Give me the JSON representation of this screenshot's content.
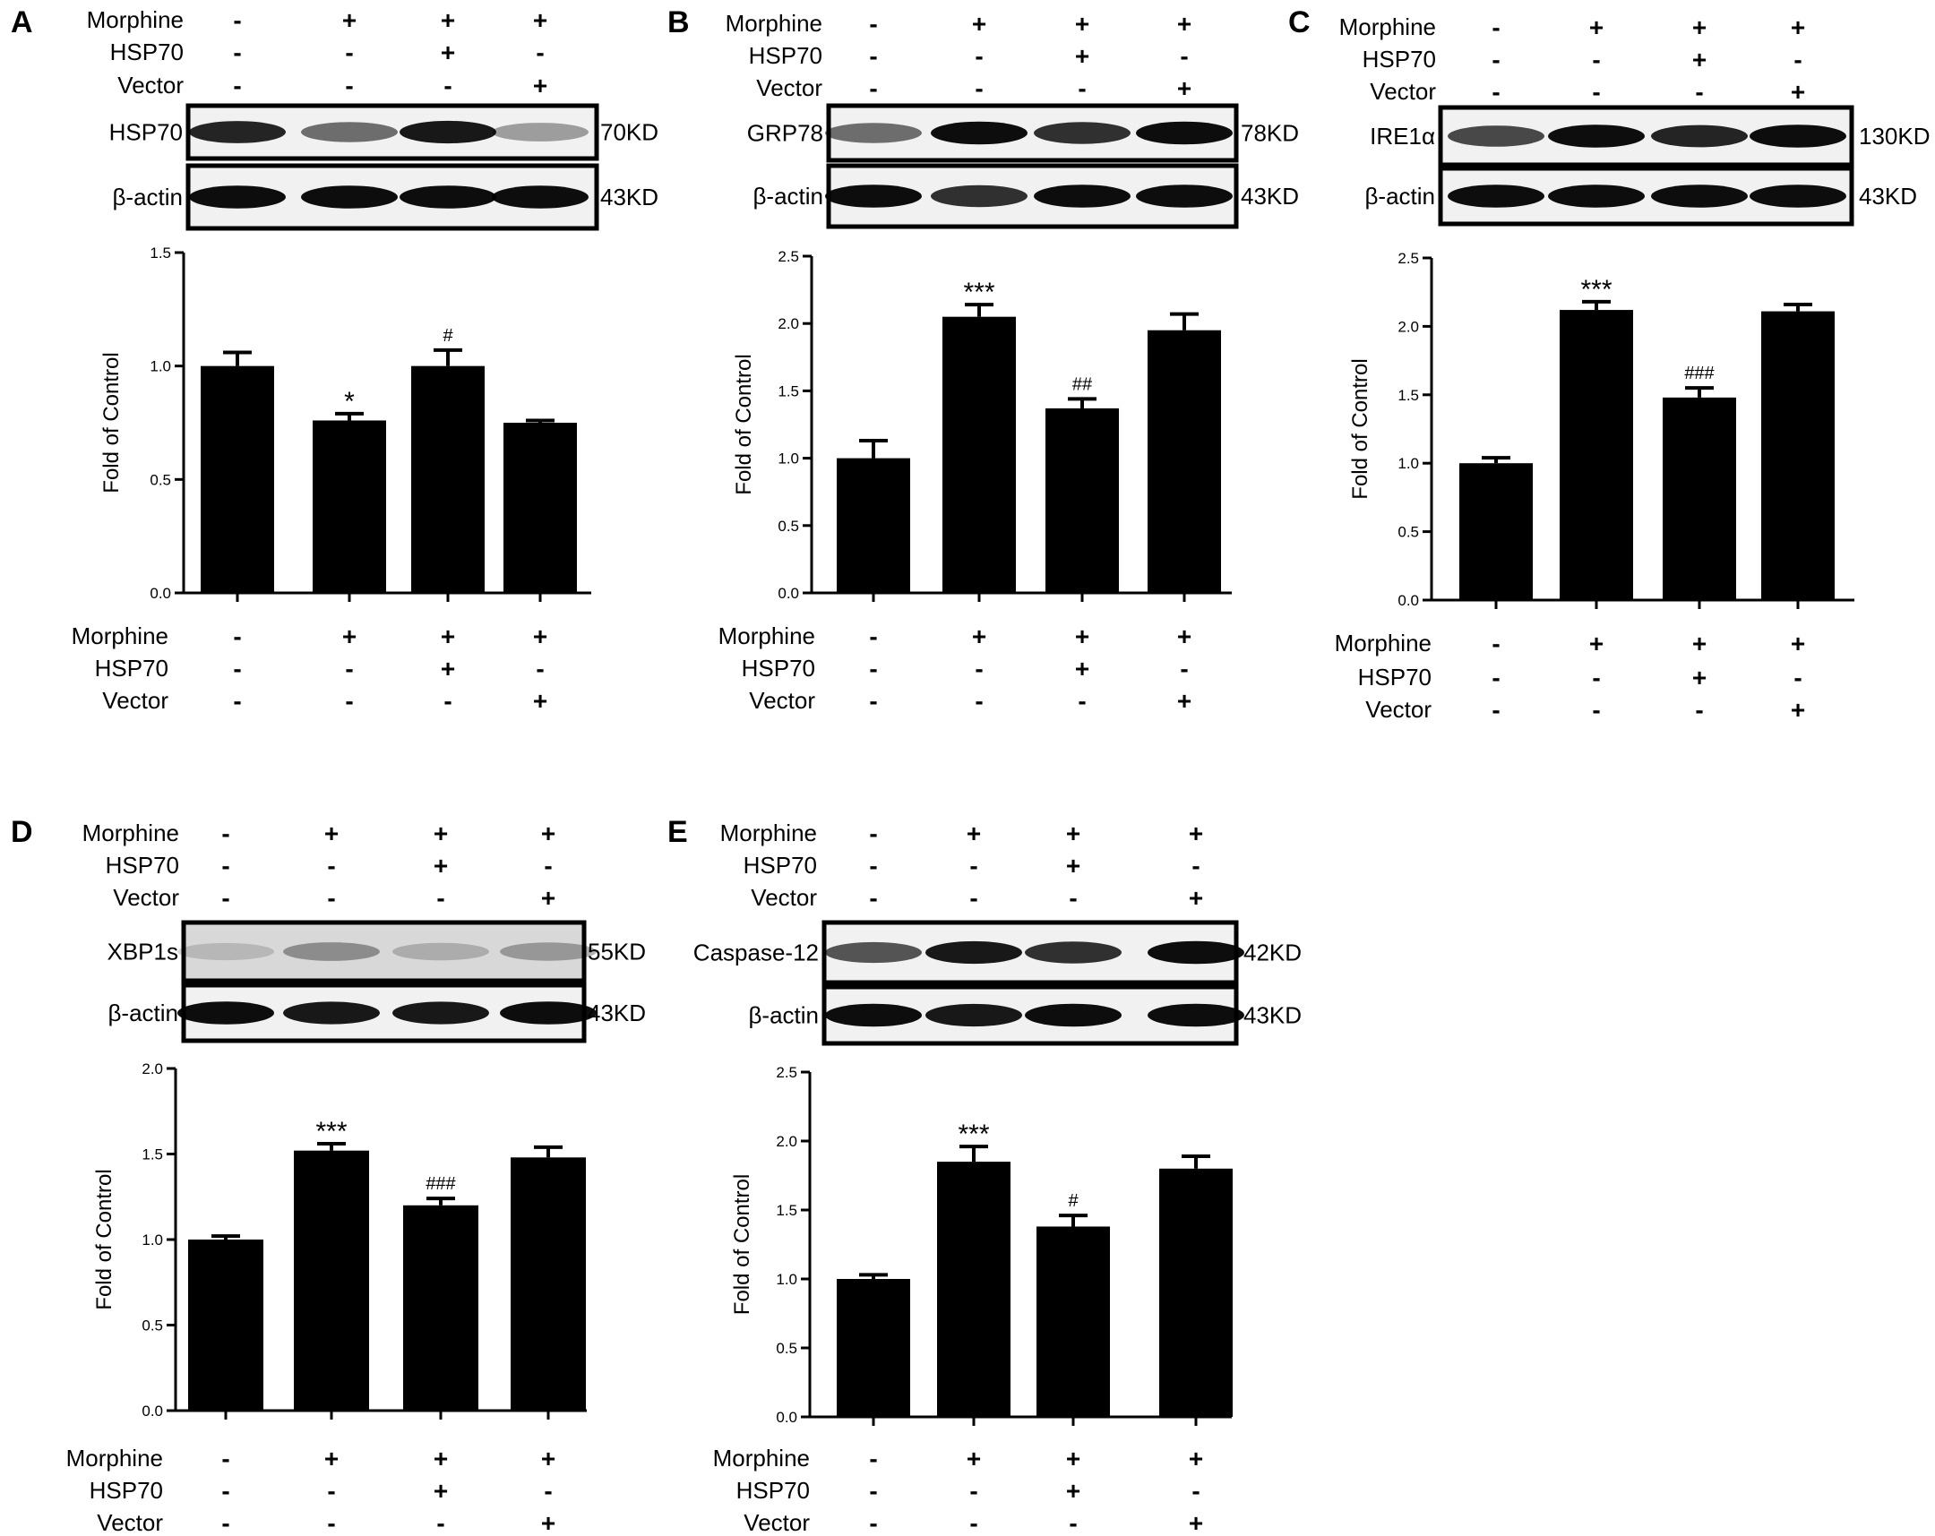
{
  "panels": [
    {
      "letter": "A",
      "treatment_rows": [
        {
          "label": "Morphine",
          "signs": [
            "-",
            "+",
            "+",
            "+"
          ]
        },
        {
          "label": "HSP70",
          "signs": [
            "-",
            "-",
            "+",
            "-"
          ]
        },
        {
          "label": "Vector",
          "signs": [
            "-",
            "-",
            "-",
            "+"
          ]
        }
      ],
      "blots": [
        {
          "protein": "HSP70",
          "size": "70KD"
        },
        {
          "protein": "β-actin",
          "size": "43KD"
        }
      ]
    },
    {
      "letter": "B",
      "treatment_rows": [
        {
          "label": "Morphine",
          "signs": [
            "-",
            "+",
            "+",
            "+"
          ]
        },
        {
          "label": "HSP70",
          "signs": [
            "-",
            "-",
            "+",
            "-"
          ]
        },
        {
          "label": "Vector",
          "signs": [
            "-",
            "-",
            "-",
            "+"
          ]
        }
      ],
      "blots": [
        {
          "protein": "GRP78",
          "size": "78KD"
        },
        {
          "protein": "β-actin",
          "size": "43KD"
        }
      ]
    },
    {
      "letter": "C",
      "treatment_rows": [
        {
          "label": "Morphine",
          "signs": [
            "-",
            "+",
            "+",
            "+"
          ]
        },
        {
          "label": "HSP70",
          "signs": [
            "-",
            "-",
            "+",
            "-"
          ]
        },
        {
          "label": "Vector",
          "signs": [
            "-",
            "-",
            "-",
            "+"
          ]
        }
      ],
      "blots": [
        {
          "protein": "IRE1α",
          "size": "130KD"
        },
        {
          "protein": "β-actin",
          "size": "43KD"
        }
      ]
    },
    {
      "letter": "D",
      "treatment_rows": [
        {
          "label": "Morphine",
          "signs": [
            "-",
            "+",
            "+",
            "+"
          ]
        },
        {
          "label": "HSP70",
          "signs": [
            "-",
            "-",
            "+",
            "-"
          ]
        },
        {
          "label": "Vector",
          "signs": [
            "-",
            "-",
            "-",
            "+"
          ]
        }
      ],
      "blots": [
        {
          "protein": "XBP1s",
          "size": "55KD"
        },
        {
          "protein": "β-actin",
          "size": "43KD"
        }
      ]
    },
    {
      "letter": "E",
      "treatment_rows": [
        {
          "label": "Morphine",
          "signs": [
            "-",
            "+",
            "+",
            "+"
          ]
        },
        {
          "label": "HSP70",
          "signs": [
            "-",
            "-",
            "+",
            "-"
          ]
        },
        {
          "label": "Vector",
          "signs": [
            "-",
            "-",
            "-",
            "+"
          ]
        }
      ],
      "blots": [
        {
          "protein": "Caspase-12",
          "size": "42KD"
        },
        {
          "protein": "β-actin",
          "size": "43KD"
        }
      ]
    }
  ],
  "chart_data": [
    {
      "panel": "A",
      "type": "bar",
      "ylabel": "Fold of Control",
      "ylim": [
        0,
        1.5
      ],
      "yticks": [
        "0.0",
        "0.5",
        "1.0",
        "1.5"
      ],
      "values": [
        1.0,
        0.76,
        1.0,
        0.75
      ],
      "errors": [
        0.06,
        0.03,
        0.07,
        0.01
      ],
      "annotations": [
        "",
        "*",
        "#",
        ""
      ],
      "bar_color": "#000000"
    },
    {
      "panel": "B",
      "type": "bar",
      "ylabel": "Fold of Control",
      "ylim": [
        0,
        2.5
      ],
      "yticks": [
        "0.0",
        "0.5",
        "1.0",
        "1.5",
        "2.0",
        "2.5"
      ],
      "values": [
        1.0,
        2.05,
        1.37,
        1.95
      ],
      "errors": [
        0.13,
        0.09,
        0.07,
        0.12
      ],
      "annotations": [
        "",
        "***",
        "##",
        ""
      ],
      "bar_color": "#000000"
    },
    {
      "panel": "C",
      "type": "bar",
      "ylabel": "Fold of Control",
      "ylim": [
        0,
        2.5
      ],
      "yticks": [
        "0.0",
        "0.5",
        "1.0",
        "1.5",
        "2.0",
        "2.5"
      ],
      "values": [
        1.0,
        2.12,
        1.48,
        2.11
      ],
      "errors": [
        0.04,
        0.06,
        0.07,
        0.05
      ],
      "annotations": [
        "",
        "***",
        "###",
        ""
      ],
      "bar_color": "#000000"
    },
    {
      "panel": "D",
      "type": "bar",
      "ylabel": "Fold of Control",
      "ylim": [
        0,
        2.0
      ],
      "yticks": [
        "0.0",
        "0.5",
        "1.0",
        "1.5",
        "2.0"
      ],
      "values": [
        1.0,
        1.52,
        1.2,
        1.48
      ],
      "errors": [
        0.02,
        0.04,
        0.04,
        0.06
      ],
      "annotations": [
        "",
        "***",
        "###",
        ""
      ],
      "bar_color": "#000000"
    },
    {
      "panel": "E",
      "type": "bar",
      "ylabel": "Fold of Control",
      "ylim": [
        0,
        2.5
      ],
      "yticks": [
        "0.0",
        "0.5",
        "1.0",
        "1.5",
        "2.0",
        "2.5"
      ],
      "values": [
        1.0,
        1.85,
        1.38,
        1.8
      ],
      "errors": [
        0.03,
        0.11,
        0.08,
        0.09
      ],
      "annotations": [
        "",
        "***",
        "#",
        ""
      ],
      "bar_color": "#000000"
    }
  ]
}
